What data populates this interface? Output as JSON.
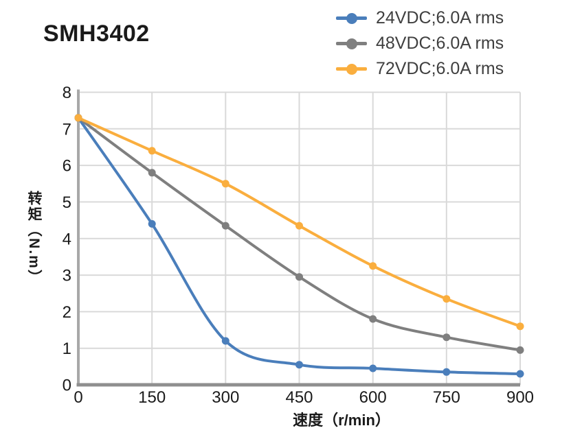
{
  "header": {
    "title": "SMH3402"
  },
  "colors": {
    "background": "#ffffff",
    "grid": "#d9d9d9",
    "axis_x": "#8f8f8f",
    "axis_y": "#a8a8a8",
    "tick_text": "#1a1a1a",
    "legend_text": "#3f3f3f",
    "series_24v": "#4a7ebb",
    "series_48v": "#7f7f7f",
    "series_72v": "#faae3e"
  },
  "chart_data": {
    "type": "line",
    "title": "SMH3402",
    "xlabel": "速度（r/min）",
    "ylabel": "转矩（N.m）",
    "x": [
      0,
      150,
      300,
      450,
      600,
      750,
      900
    ],
    "xticks": [
      0,
      150,
      300,
      450,
      600,
      750,
      900
    ],
    "yticks": [
      0,
      1,
      2,
      3,
      4,
      5,
      6,
      7,
      8
    ],
    "xlim": [
      0,
      900
    ],
    "ylim": [
      0,
      8
    ],
    "grid": true,
    "legend_position": "top-right",
    "marker": "circle",
    "smooth": true,
    "series": [
      {
        "name": "24VDC;6.0A rms",
        "color": "#4a7ebb",
        "values": [
          7.3,
          4.4,
          1.2,
          0.55,
          0.45,
          0.35,
          0.3
        ]
      },
      {
        "name": "48VDC;6.0A rms",
        "color": "#7f7f7f",
        "values": [
          7.3,
          5.8,
          4.35,
          2.95,
          1.8,
          1.3,
          0.95
        ]
      },
      {
        "name": "72VDC;6.0A rms",
        "color": "#faae3e",
        "values": [
          7.3,
          6.4,
          5.5,
          4.35,
          3.25,
          2.35,
          1.6
        ]
      }
    ]
  }
}
